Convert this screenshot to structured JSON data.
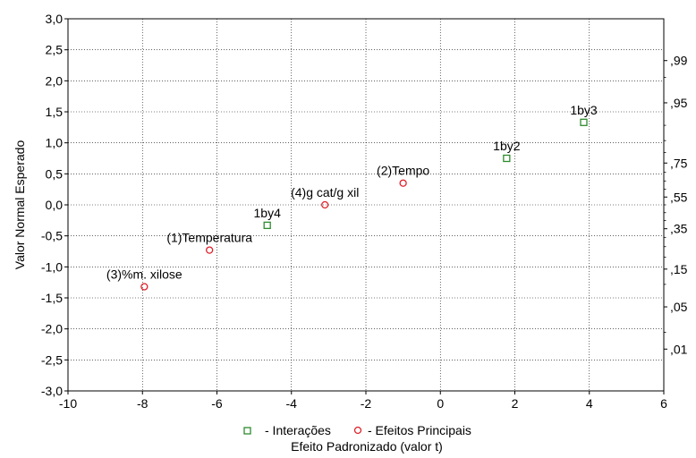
{
  "chart_data": {
    "type": "scatter",
    "xlabel": "Efeito Padronizado (valor t)",
    "ylabel": "Valor Normal Esperado",
    "xlim": [
      -10,
      6
    ],
    "ylim": [
      -3.0,
      3.0
    ],
    "x_ticks": [
      -10,
      -8,
      -6,
      -4,
      -2,
      0,
      2,
      4,
      6
    ],
    "x_tick_labels": [
      "-10",
      "-8",
      "-6",
      "-4",
      "-2",
      "0",
      "2",
      "4",
      "6"
    ],
    "y_ticks": [
      -3.0,
      -2.5,
      -2.0,
      -1.5,
      -1.0,
      -0.5,
      0.0,
      0.5,
      1.0,
      1.5,
      2.0,
      2.5,
      3.0
    ],
    "y_tick_labels": [
      "-3,0",
      "-2,5",
      "-2,0",
      "-1,5",
      "-1,0",
      "-0,5",
      "0,0",
      "0,5",
      "1,0",
      "1,5",
      "2,0",
      "2,5",
      "3,0"
    ],
    "right_axis": {
      "labels": [
        ",99",
        ",95",
        ",75",
        ",55",
        ",35",
        ",15",
        ",05",
        ",01"
      ],
      "values": [
        2.326,
        1.645,
        0.674,
        0.126,
        -0.385,
        -1.036,
        -1.645,
        -2.326
      ]
    },
    "grid": true,
    "legend_position": "bottom",
    "series": [
      {
        "name": "- Interações",
        "marker": "square",
        "color": "#2e8b2e",
        "points": [
          {
            "x": -4.65,
            "y": -0.33,
            "label": "1by4"
          },
          {
            "x": 1.78,
            "y": 0.75,
            "label": "1by2"
          },
          {
            "x": 3.85,
            "y": 1.33,
            "label": "1by3"
          }
        ]
      },
      {
        "name": "- Efeitos Principais",
        "marker": "circle",
        "color": "#e0202a",
        "points": [
          {
            "x": -7.95,
            "y": -1.32,
            "label": "(3)%m. xilose"
          },
          {
            "x": -6.2,
            "y": -0.73,
            "label": "(1)Temperatura"
          },
          {
            "x": -3.1,
            "y": 0.0,
            "label": "(4)g cat/g xil"
          },
          {
            "x": -1.0,
            "y": 0.35,
            "label": "(2)Tempo"
          }
        ]
      }
    ]
  }
}
